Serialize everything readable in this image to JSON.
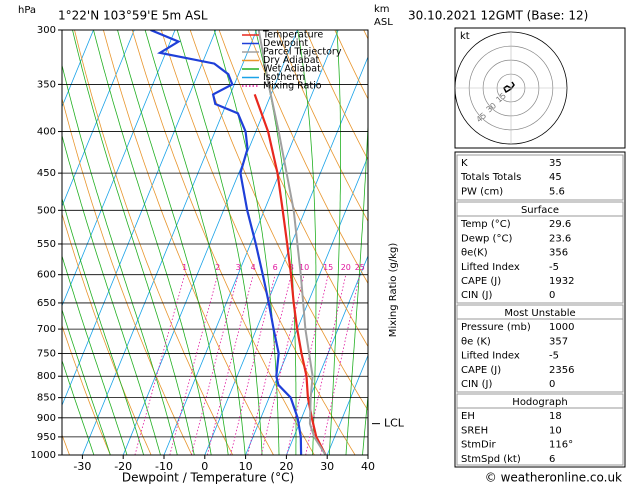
{
  "chart_data": {
    "type": "skewt",
    "title": "1°22'N 103°59'E 5m ASL",
    "date": "30.10.2021 12GMT (Base: 12)",
    "y_label": "hPa",
    "km_label": "km",
    "asl_label": "ASL",
    "x_label": "Dewpoint / Temperature (°C)",
    "mixing_ratio_label": "Mixing Ratio (g/kg)",
    "log_y": true,
    "ylim": [
      1000,
      300
    ],
    "yticks": [
      300,
      350,
      400,
      450,
      500,
      550,
      600,
      650,
      700,
      750,
      800,
      850,
      900,
      950,
      1000
    ],
    "xlim": [
      -35,
      40
    ],
    "xticks": [
      -30,
      -20,
      -10,
      0,
      10,
      20,
      30,
      40
    ],
    "series": [
      {
        "name": "Temperature",
        "color": "#e8281e",
        "pressure": [
          1000,
          950,
          900,
          850,
          800,
          750,
          700,
          650,
          600,
          550,
          500,
          450,
          400,
          360
        ],
        "values": [
          29.6,
          25.5,
          22.5,
          19.5,
          17,
          13.5,
          10,
          6.5,
          3,
          -1,
          -5.5,
          -10.5,
          -17,
          -24
        ]
      },
      {
        "name": "Dewpoint",
        "color": "#1f3fd8",
        "pressure": [
          1000,
          950,
          900,
          850,
          820,
          800,
          750,
          700,
          650,
          600,
          550,
          500,
          450,
          420,
          400,
          380,
          370,
          360,
          350,
          340,
          330,
          320,
          310,
          300
        ],
        "values": [
          23.6,
          21.7,
          19,
          15.3,
          11,
          9.6,
          7.9,
          4.2,
          0.4,
          -3.9,
          -8.7,
          -14.2,
          -19.6,
          -20.3,
          -22.5,
          -26.2,
          -32.7,
          -34.2,
          -30.5,
          -32.5,
          -37,
          -51.4,
          -48,
          -56
        ]
      },
      {
        "name": "Parcel Trajectory",
        "color": "#a0a0a0",
        "pressure": [
          1000,
          950,
          915,
          850,
          800,
          700,
          600,
          500,
          400,
          350,
          300
        ],
        "values": [
          29.6,
          25,
          22.6,
          20.2,
          18.5,
          12,
          5.4,
          -2.8,
          -14.4,
          -21.6,
          -29.5
        ]
      }
    ],
    "background_lines": [
      {
        "name": "Dry Adiabat",
        "color": "#e8962e"
      },
      {
        "name": "Wet Adiabat",
        "color": "#22b022"
      },
      {
        "name": "Isotherm",
        "color": "#1aa3e8"
      },
      {
        "name": "Mixing Ratio",
        "color": "#e0169e"
      }
    ],
    "mixing_ratios": [
      1,
      2,
      3,
      4,
      6,
      8,
      10,
      15,
      20,
      25
    ],
    "lcl": {
      "label": "LCL",
      "pressure": 915
    },
    "hodograph": {
      "unit": "kt",
      "ring_labels": [
        15,
        30,
        45
      ]
    },
    "indices": [
      {
        "label": "K",
        "value": 35
      },
      {
        "label": "Totals Totals",
        "value": 45
      },
      {
        "label": "PW (cm)",
        "value": 5.6
      }
    ],
    "surface": {
      "title": "Surface",
      "rows": [
        {
          "label": "Temp (°C)",
          "value": 29.6
        },
        {
          "label": "Dewp (°C)",
          "value": 23.6
        },
        {
          "label": "θe(K)",
          "value": 356
        },
        {
          "label": "Lifted Index",
          "value": -5
        },
        {
          "label": "CAPE (J)",
          "value": 1932
        },
        {
          "label": "CIN (J)",
          "value": 0
        }
      ]
    },
    "most_unstable": {
      "title": "Most Unstable",
      "rows": [
        {
          "label": "Pressure (mb)",
          "value": 1000
        },
        {
          "label": "θe (K)",
          "value": 357
        },
        {
          "label": "Lifted Index",
          "value": -5
        },
        {
          "label": "CAPE (J)",
          "value": 2356
        },
        {
          "label": "CIN (J)",
          "value": 0
        }
      ]
    },
    "hodograph_stats": {
      "title": "Hodograph",
      "rows": [
        {
          "label": "EH",
          "value": 18
        },
        {
          "label": "SREH",
          "value": 10
        },
        {
          "label": "StmDir",
          "value": "116°"
        },
        {
          "label": "StmSpd (kt)",
          "value": 6
        }
      ]
    },
    "footer": "© weatheronline.co.uk"
  }
}
